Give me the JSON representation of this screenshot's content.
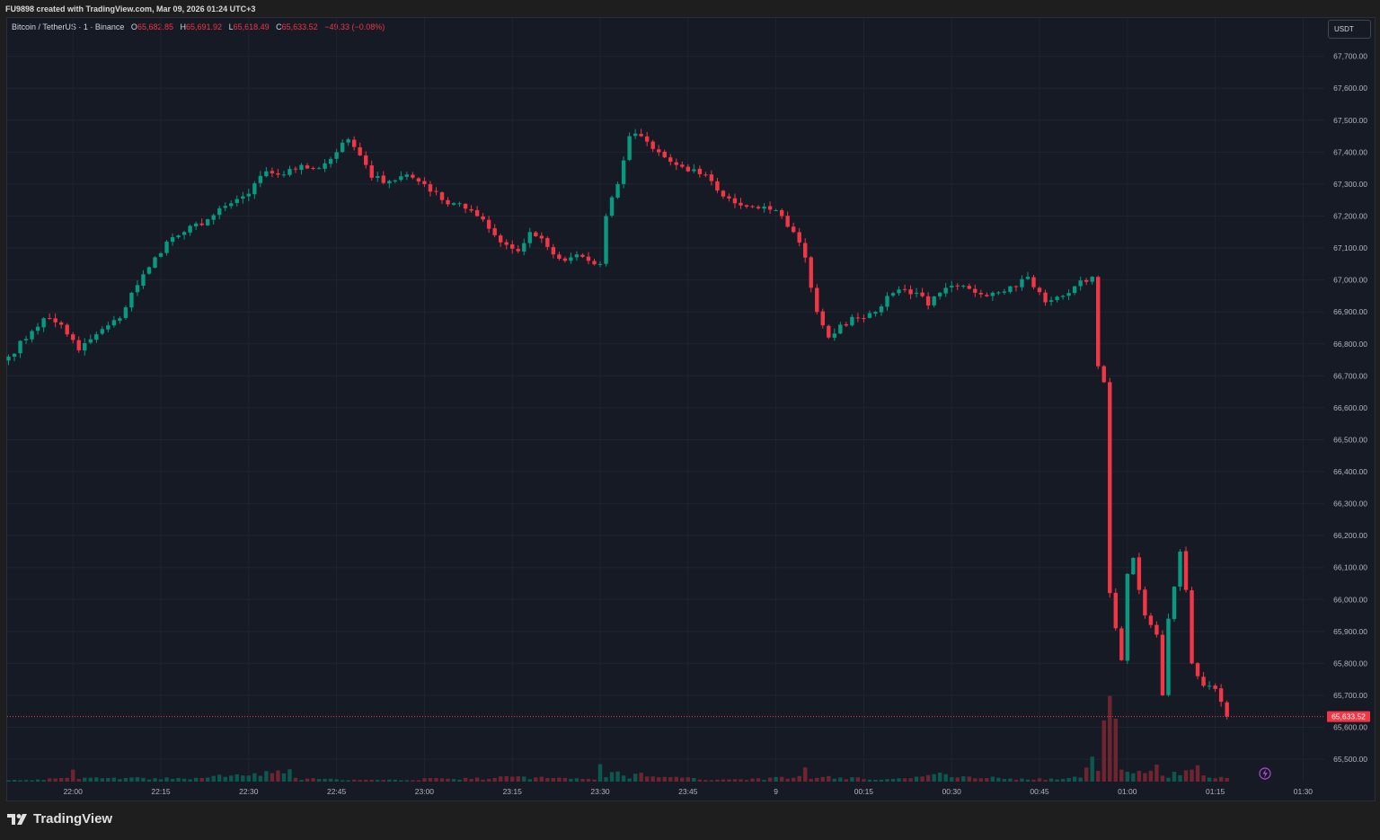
{
  "header": {
    "caption": "FU9898 created with TradingView.com, Mar 09, 2026 01:24 UTC+3"
  },
  "legend": {
    "symbol": "Bitcoin / TetherUS · 1 · Binance",
    "open_label": "O",
    "open": "65,682.85",
    "high_label": "H",
    "high": "65,691.92",
    "low_label": "L",
    "low": "65,618.49",
    "close_label": "C",
    "close": "65,633.52",
    "change": "−49.33 (−0.08%)"
  },
  "currency": "USDT",
  "last_price_label": "65,633.52",
  "footer": {
    "brand": "TradingView"
  },
  "colors": {
    "up": "#089981",
    "down": "#f23645",
    "background": "#161a25",
    "grid": "#1f2430",
    "axis_text": "#b2b5be"
  },
  "chart_data": {
    "type": "candlestick",
    "title": "",
    "y_axis_side": "right",
    "ylim": [
      65430,
      67820
    ],
    "y_ticks": [
      "65,500.00",
      "65,600.00",
      "65,700.00",
      "65,800.00",
      "65,900.00",
      "66,000.00",
      "66,100.00",
      "66,200.00",
      "66,300.00",
      "66,400.00",
      "66,500.00",
      "66,600.00",
      "66,700.00",
      "66,800.00",
      "66,900.00",
      "67,000.00",
      "67,100.00",
      "67,200.00",
      "67,300.00",
      "67,400.00",
      "67,500.00",
      "67,600.00",
      "67,700.00"
    ],
    "x_ticks": [
      "22:00",
      "22:15",
      "22:30",
      "22:45",
      "23:00",
      "23:15",
      "23:30",
      "23:45",
      "9",
      "00:15",
      "00:30",
      "00:45",
      "01:00",
      "01:15",
      "01:30"
    ],
    "x_tick_minute": [
      11,
      26,
      41,
      56,
      71,
      86,
      101,
      116,
      131,
      146,
      161,
      176,
      191,
      206,
      221
    ],
    "grid": true,
    "last_price": 65633.52,
    "close_keypoints": [
      [
        0,
        66760
      ],
      [
        4,
        66840
      ],
      [
        6,
        66880
      ],
      [
        9,
        66860
      ],
      [
        12,
        66780
      ],
      [
        15,
        66830
      ],
      [
        19,
        66880
      ],
      [
        21,
        66960
      ],
      [
        24,
        67040
      ],
      [
        27,
        67120
      ],
      [
        30,
        67150
      ],
      [
        34,
        67190
      ],
      [
        38,
        67240
      ],
      [
        41,
        67270
      ],
      [
        44,
        67340
      ],
      [
        47,
        67330
      ],
      [
        50,
        67360
      ],
      [
        53,
        67350
      ],
      [
        56,
        67400
      ],
      [
        58,
        67440
      ],
      [
        60,
        67390
      ],
      [
        62,
        67320
      ],
      [
        65,
        67310
      ],
      [
        68,
        67330
      ],
      [
        71,
        67300
      ],
      [
        74,
        67250
      ],
      [
        77,
        67240
      ],
      [
        80,
        67200
      ],
      [
        83,
        67140
      ],
      [
        85,
        67110
      ],
      [
        87,
        67090
      ],
      [
        89,
        67150
      ],
      [
        91,
        67130
      ],
      [
        93,
        67080
      ],
      [
        95,
        67060
      ],
      [
        97,
        67080
      ],
      [
        99,
        67060
      ],
      [
        101,
        67050
      ],
      [
        102,
        67200
      ],
      [
        104,
        67300
      ],
      [
        106,
        67450
      ],
      [
        108,
        67450
      ],
      [
        110,
        67410
      ],
      [
        113,
        67370
      ],
      [
        116,
        67340
      ],
      [
        119,
        67330
      ],
      [
        121,
        67280
      ],
      [
        124,
        67240
      ],
      [
        127,
        67230
      ],
      [
        130,
        67220
      ],
      [
        132,
        67200
      ],
      [
        134,
        67150
      ],
      [
        136,
        67070
      ],
      [
        138,
        66900
      ],
      [
        140,
        66820
      ],
      [
        142,
        66860
      ],
      [
        145,
        66880
      ],
      [
        148,
        66900
      ],
      [
        150,
        66950
      ],
      [
        152,
        66970
      ],
      [
        155,
        66960
      ],
      [
        157,
        66920
      ],
      [
        159,
        66960
      ],
      [
        162,
        66980
      ],
      [
        165,
        66960
      ],
      [
        168,
        66960
      ],
      [
        171,
        66980
      ],
      [
        174,
        67010
      ],
      [
        177,
        66930
      ],
      [
        180,
        66950
      ],
      [
        182,
        66980
      ],
      [
        185,
        67010
      ],
      [
        186,
        66730
      ],
      [
        187,
        66680
      ],
      [
        188,
        66020
      ],
      [
        189,
        65910
      ],
      [
        190,
        65810
      ],
      [
        191,
        66080
      ],
      [
        192,
        66130
      ],
      [
        193,
        66030
      ],
      [
        194,
        65950
      ],
      [
        195,
        65920
      ],
      [
        196,
        65890
      ],
      [
        197,
        65700
      ],
      [
        198,
        65940
      ],
      [
        199,
        66040
      ],
      [
        200,
        66150
      ],
      [
        201,
        66030
      ],
      [
        202,
        65800
      ],
      [
        203,
        65760
      ],
      [
        204,
        65730
      ],
      [
        205,
        65730
      ],
      [
        206,
        65720
      ],
      [
        207,
        65680
      ],
      [
        208,
        65633.52
      ]
    ],
    "volume_keypoints": [
      [
        0,
        2
      ],
      [
        10,
        4
      ],
      [
        11,
        14
      ],
      [
        12,
        5
      ],
      [
        30,
        4
      ],
      [
        48,
        13
      ],
      [
        49,
        4
      ],
      [
        60,
        2
      ],
      [
        70,
        2
      ],
      [
        71,
        4
      ],
      [
        80,
        4
      ],
      [
        85,
        6
      ],
      [
        100,
        4
      ],
      [
        101,
        36
      ],
      [
        102,
        9
      ],
      [
        103,
        19
      ],
      [
        104,
        13
      ],
      [
        106,
        4
      ],
      [
        107,
        8
      ],
      [
        108,
        18
      ],
      [
        109,
        6
      ],
      [
        115,
        5
      ],
      [
        120,
        3
      ],
      [
        130,
        4
      ],
      [
        135,
        7
      ],
      [
        136,
        18
      ],
      [
        137,
        5
      ],
      [
        140,
        6
      ],
      [
        150,
        3
      ],
      [
        160,
        10
      ],
      [
        170,
        4
      ],
      [
        180,
        3
      ],
      [
        183,
        6
      ],
      [
        184,
        32
      ],
      [
        185,
        35
      ],
      [
        186,
        20
      ],
      [
        187,
        70
      ],
      [
        188,
        105
      ],
      [
        189,
        66
      ],
      [
        190,
        25
      ],
      [
        191,
        12
      ],
      [
        192,
        10
      ],
      [
        193,
        11
      ],
      [
        194,
        18
      ],
      [
        195,
        15
      ],
      [
        196,
        20
      ],
      [
        197,
        13
      ],
      [
        198,
        9
      ],
      [
        199,
        12
      ],
      [
        200,
        14
      ],
      [
        201,
        18
      ],
      [
        202,
        20
      ],
      [
        203,
        17
      ],
      [
        204,
        8
      ],
      [
        205,
        7
      ],
      [
        206,
        5
      ]
    ]
  }
}
